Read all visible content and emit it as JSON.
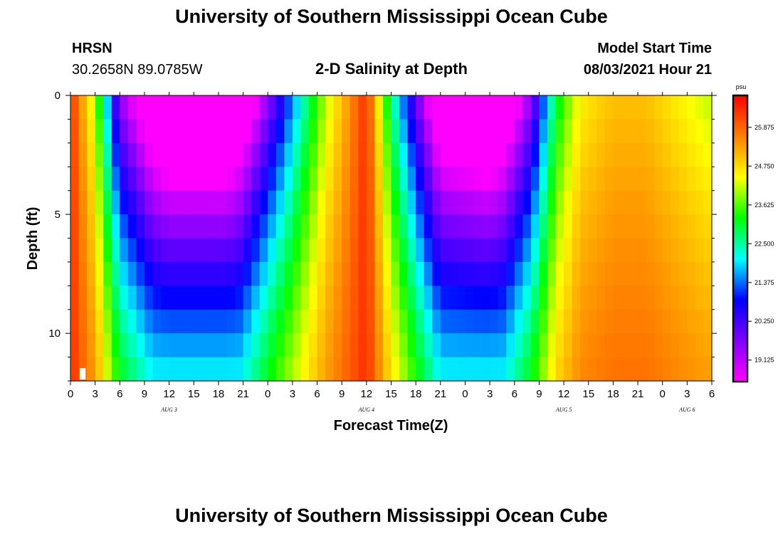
{
  "header": {
    "title": "University of Southern Mississippi Ocean Cube",
    "footer_title": "University of Southern Mississippi Ocean Cube",
    "station": "HRSN",
    "coords": "30.2658N  89.0785W",
    "model_start_label": "Model Start Time",
    "model_start_value": "08/03/2021 Hour 21"
  },
  "chart_data": {
    "type": "heatmap",
    "title": "2-D Salinity at Depth",
    "xlabel": "Forecast Time(Z)",
    "ylabel": "Depth (ft)",
    "x_tick_labels": [
      "0",
      "3",
      "6",
      "9",
      "12",
      "15",
      "18",
      "21",
      "0",
      "3",
      "6",
      "9",
      "12",
      "15",
      "18",
      "21",
      "0",
      "3",
      "6",
      "9",
      "12",
      "15",
      "18",
      "21",
      "0",
      "3",
      "6"
    ],
    "date_labels": [
      {
        "label": "AUG 3",
        "tick_index": 4
      },
      {
        "label": "AUG 4",
        "tick_index": 12
      },
      {
        "label": "AUG 5",
        "tick_index": 20
      },
      {
        "label": "AUG 6",
        "tick_index": 25
      }
    ],
    "x_range_hours": [
      0,
      78
    ],
    "y_ticks": [
      0,
      5,
      10
    ],
    "y_range_ft": [
      0,
      12
    ],
    "depth_levels": 12,
    "time_steps": 78,
    "colorbar": {
      "unit": "psu",
      "range": [
        18.5,
        26.8
      ],
      "labels": [
        "25.875",
        "24.750",
        "23.625",
        "22.500",
        "21.375",
        "20.250",
        "19.125"
      ],
      "colors": [
        "#ff00ff",
        "#8000ff",
        "#0000ff",
        "#00ffff",
        "#00ff00",
        "#ffff00",
        "#ff8000",
        "#ff0000"
      ]
    },
    "marker": {
      "hour": 1.5,
      "depth_ft": 11.7
    }
  }
}
